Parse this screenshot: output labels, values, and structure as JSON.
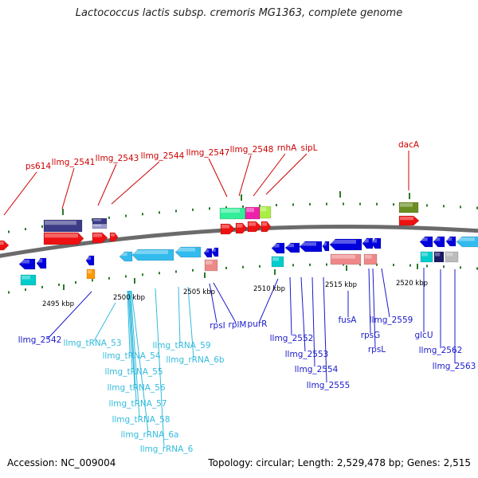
{
  "title": "Lactococcus lactis subsp. cremoris MG1363, complete genome",
  "footer": {
    "accession": "Accession: NC_009004",
    "topology": "Topology: circular; Length: 2,529,478 bp; Genes: 2,515"
  },
  "colors": {
    "label_top": "#cc0000",
    "label_bottom_dark": "#1a1acc",
    "label_bottom_light": "#33bbdd",
    "backbone": "#6b6b6b",
    "tick": "#2a7a2a"
  },
  "ruler_labels": [
    "2495 kbp",
    "2500 kbp",
    "2505 kbp",
    "2510 kbp",
    "2515 kbp",
    "2520 kbp"
  ],
  "top_labels": [
    "ps614",
    "llmg_2541",
    "llmg_2543",
    "llmg_2544",
    "llmg_2547",
    "llmg_2548",
    "rnhA",
    "sipL",
    "dacA"
  ],
  "bottom_labels": [
    "llmg_2542",
    "llmg_tRNA_53",
    "llmg_tRNA_54",
    "llmg_tRNA_55",
    "llmg_tRNA_56",
    "llmg_tRNA_57",
    "llmg_tRNA_58",
    "llmg_rRNA_6a",
    "llmg_rRNA_6",
    "llmg_tRNA_59",
    "llmg_rRNA_6b",
    "rpsI",
    "rplM",
    "purR",
    "llmg_2552",
    "llmg_2553",
    "llmg_2554",
    "llmg_2555",
    "fusA",
    "rpsG",
    "rpsL",
    "llmg_2559",
    "glcU",
    "llmg_2562",
    "llmg_2563"
  ]
}
